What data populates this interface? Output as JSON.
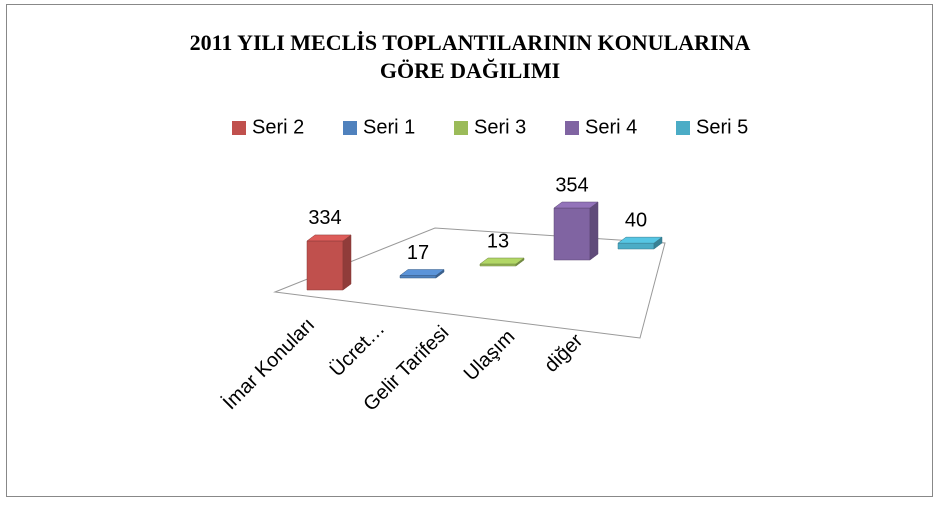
{
  "chart_data": {
    "type": "bar3d",
    "title": "2011 YILI MECLİS TOPLANTILARININ KONULARINA",
    "subtitle": "GÖRE DAĞILIMI",
    "categories": [
      "İmar Konuları",
      "Ücret…",
      "Gelir Tarifesi",
      "Ulaşım",
      "diğer"
    ],
    "series": [
      {
        "name": "Seri 2",
        "color": "#c0504d",
        "values": [
          334,
          null,
          null,
          null,
          null
        ]
      },
      {
        "name": "Seri 1",
        "color": "#4f81bd",
        "values": [
          null,
          17,
          null,
          null,
          null
        ]
      },
      {
        "name": "Seri 3",
        "color": "#9bbb59",
        "values": [
          null,
          null,
          13,
          null,
          null
        ]
      },
      {
        "name": "Seri 4",
        "color": "#8064a2",
        "values": [
          null,
          null,
          null,
          354,
          null
        ]
      },
      {
        "name": "Seri 5",
        "color": "#4bacc6",
        "values": [
          null,
          null,
          null,
          null,
          40
        ]
      }
    ],
    "legend": "top"
  }
}
